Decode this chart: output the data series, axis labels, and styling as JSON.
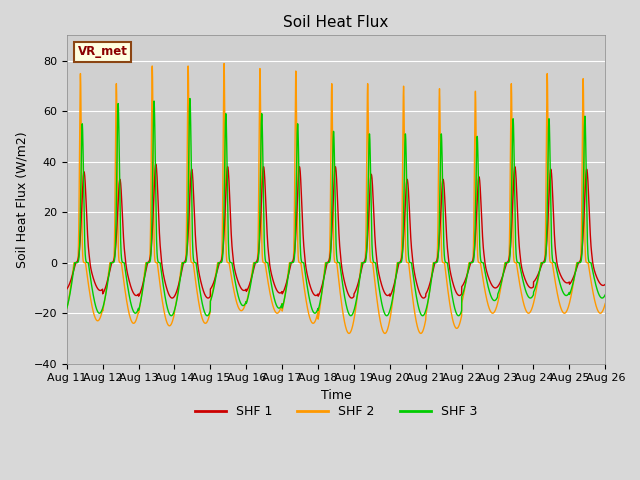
{
  "title": "Soil Heat Flux",
  "ylabel": "Soil Heat Flux (W/m2)",
  "xlabel": "Time",
  "ylim": [
    -40,
    90
  ],
  "yticks": [
    -40,
    -20,
    0,
    20,
    40,
    60,
    80
  ],
  "bg_color": "#d8d8d8",
  "plot_bg_color": "#d0d0d0",
  "line_colors": {
    "SHF 1": "#cc0000",
    "SHF 2": "#ff9900",
    "SHF 3": "#00cc00"
  },
  "legend_label": "VR_met",
  "num_days": 15,
  "points_per_day": 288,
  "shf2_peaks": [
    75,
    71,
    78,
    78,
    79,
    77,
    76,
    71,
    71,
    70,
    69,
    68,
    71,
    75,
    73
  ],
  "shf1_peaks": [
    36,
    33,
    39,
    37,
    38,
    38,
    38,
    38,
    35,
    33,
    33,
    34,
    38,
    37,
    37
  ],
  "shf3_peaks": [
    55,
    63,
    64,
    65,
    59,
    59,
    55,
    52,
    51,
    51,
    51,
    50,
    57,
    57,
    58
  ],
  "shf2_troughs": [
    -23,
    -24,
    -25,
    -24,
    -19,
    -20,
    -24,
    -28,
    -28,
    -28,
    -26,
    -20,
    -20,
    -20,
    -20
  ],
  "shf1_troughs": [
    -11,
    -13,
    -14,
    -14,
    -11,
    -12,
    -13,
    -14,
    -13,
    -14,
    -13,
    -10,
    -10,
    -8,
    -9
  ],
  "shf3_troughs": [
    -20,
    -20,
    -21,
    -21,
    -17,
    -18,
    -20,
    -21,
    -21,
    -21,
    -21,
    -15,
    -14,
    -13,
    -14
  ]
}
